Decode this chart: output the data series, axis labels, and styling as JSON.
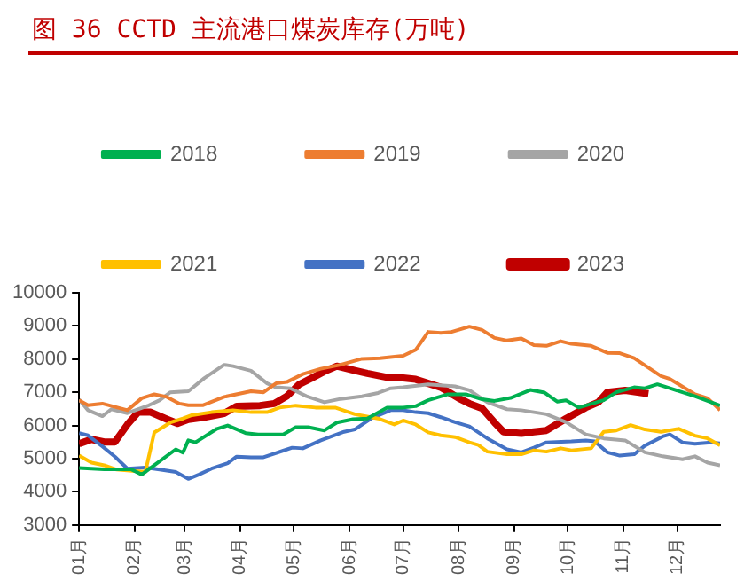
{
  "chart_data": {
    "type": "line",
    "title": "图 36 CCTD 主流港口煤炭库存(万吨)",
    "xlim": [
      "--01-01",
      "--12-25"
    ],
    "xticks": [
      {
        "value": "--01-01",
        "label": "01月"
      },
      {
        "value": "--02-01",
        "label": "02月"
      },
      {
        "value": "--03-01",
        "label": "03月"
      },
      {
        "value": "--04-01",
        "label": "04月"
      },
      {
        "value": "--05-01",
        "label": "05月"
      },
      {
        "value": "--06-01",
        "label": "06月"
      },
      {
        "value": "--07-01",
        "label": "07月"
      },
      {
        "value": "--08-01",
        "label": "08月"
      },
      {
        "value": "--09-01",
        "label": "09月"
      },
      {
        "value": "--10-01",
        "label": "10月"
      },
      {
        "value": "--11-01",
        "label": "11月"
      },
      {
        "value": "--12-01",
        "label": "12月"
      }
    ],
    "ylim": [
      3000,
      10000
    ],
    "yticks": [
      3000,
      4000,
      5000,
      6000,
      7000,
      8000,
      9000,
      10000
    ],
    "grid": false,
    "legend": "top",
    "marker": "none",
    "line_style": "solid",
    "series": [
      {
        "name": "2018",
        "color": "#00b050",
        "x": [
          "--01-01",
          "--01-15",
          "--01-30",
          "--02-05",
          "--02-12",
          "--02-24",
          "--02-28",
          "--03-03",
          "--03-07",
          "--03-19",
          "--03-25",
          "--04-04",
          "--04-11",
          "--04-25",
          "--05-02",
          "--05-09",
          "--05-18",
          "--05-25",
          "--06-03",
          "--06-11",
          "--06-22",
          "--07-01",
          "--07-08",
          "--07-15",
          "--07-26",
          "--08-05",
          "--08-14",
          "--08-21",
          "--08-30",
          "--09-10",
          "--09-18",
          "--09-25",
          "--09-30",
          "--10-07",
          "--10-21",
          "--10-28",
          "--11-07",
          "--11-13",
          "--11-20",
          "--11-27",
          "--12-11",
          "--12-25"
        ],
        "values": [
          4720,
          4680,
          4680,
          4520,
          4800,
          5280,
          5180,
          5550,
          5490,
          5900,
          6000,
          5770,
          5730,
          5730,
          5950,
          5950,
          5850,
          6090,
          6190,
          6210,
          6540,
          6540,
          6580,
          6760,
          6940,
          6940,
          6790,
          6740,
          6830,
          7070,
          6990,
          6720,
          6760,
          6540,
          6760,
          7000,
          7150,
          7120,
          7240,
          7120,
          6880,
          6600
        ]
      },
      {
        "name": "2019",
        "color": "#ed7d31",
        "x": [
          "--01-01",
          "--01-06",
          "--01-14",
          "--01-28",
          "--02-05",
          "--02-12",
          "--02-19",
          "--02-26",
          "--03-03",
          "--03-11",
          "--03-23",
          "--04-07",
          "--04-14",
          "--04-21",
          "--04-27",
          "--05-06",
          "--05-16",
          "--05-27",
          "--06-08",
          "--06-18",
          "--07-01",
          "--07-08",
          "--07-15",
          "--07-22",
          "--07-28",
          "--08-07",
          "--08-14",
          "--08-21",
          "--08-28",
          "--09-05",
          "--09-12",
          "--09-19",
          "--09-27",
          "--10-03",
          "--10-14",
          "--10-23",
          "--10-30",
          "--11-07",
          "--11-22",
          "--11-27",
          "--12-11",
          "--12-18",
          "--12-25"
        ],
        "values": [
          6760,
          6610,
          6660,
          6460,
          6820,
          6940,
          6860,
          6660,
          6610,
          6610,
          6860,
          7030,
          7000,
          7270,
          7310,
          7550,
          7710,
          7830,
          8010,
          8030,
          8100,
          8280,
          8820,
          8790,
          8820,
          8980,
          8880,
          8640,
          8560,
          8620,
          8420,
          8400,
          8540,
          8460,
          8400,
          8190,
          8180,
          8030,
          7490,
          7400,
          6940,
          6820,
          6460
        ]
      },
      {
        "name": "2020",
        "color": "#a5a5a5",
        "x": [
          "--01-01",
          "--01-06",
          "--01-14",
          "--01-19",
          "--01-28",
          "--02-09",
          "--02-15",
          "--02-21",
          "--03-03",
          "--03-12",
          "--03-23",
          "--03-28",
          "--04-07",
          "--04-16",
          "--04-21",
          "--04-29",
          "--05-08",
          "--05-18",
          "--05-27",
          "--06-08",
          "--06-17",
          "--06-24",
          "--07-01",
          "--07-15",
          "--07-30",
          "--08-07",
          "--08-17",
          "--08-28",
          "--09-05",
          "--09-19",
          "--09-30",
          "--10-11",
          "--10-21",
          "--11-02",
          "--11-13",
          "--11-23",
          "--12-04",
          "--12-11",
          "--12-18",
          "--12-25"
        ],
        "values": [
          6780,
          6460,
          6280,
          6490,
          6370,
          6610,
          6760,
          7000,
          7030,
          7430,
          7830,
          7790,
          7650,
          7270,
          7150,
          7120,
          6880,
          6700,
          6800,
          6880,
          6980,
          7120,
          7150,
          7240,
          7180,
          7060,
          6700,
          6490,
          6460,
          6340,
          6100,
          5730,
          5610,
          5550,
          5190,
          5070,
          4980,
          5070,
          4880,
          4800
        ]
      },
      {
        "name": "2021",
        "color": "#ffc000",
        "x": [
          "--01-01",
          "--01-08",
          "--01-15",
          "--01-22",
          "--02-07",
          "--02-12",
          "--02-21",
          "--02-28",
          "--03-05",
          "--03-16",
          "--03-28",
          "--04-07",
          "--04-16",
          "--04-23",
          "--05-02",
          "--05-13",
          "--05-24",
          "--06-04",
          "--06-17",
          "--06-26",
          "--07-01",
          "--07-08",
          "--07-15",
          "--07-22",
          "--07-30",
          "--08-07",
          "--08-12",
          "--08-17",
          "--08-28",
          "--09-05",
          "--09-12",
          "--09-19",
          "--09-27",
          "--10-03",
          "--10-14",
          "--10-21",
          "--10-28",
          "--11-05",
          "--11-13",
          "--11-22",
          "--12-02",
          "--12-11",
          "--12-18",
          "--12-25"
        ],
        "values": [
          5090,
          4880,
          4800,
          4670,
          4600,
          5790,
          6090,
          6210,
          6310,
          6400,
          6460,
          6400,
          6400,
          6540,
          6600,
          6540,
          6540,
          6340,
          6210,
          6030,
          6150,
          6030,
          5790,
          5700,
          5650,
          5490,
          5410,
          5210,
          5130,
          5130,
          5250,
          5210,
          5310,
          5250,
          5310,
          5810,
          5850,
          6010,
          5880,
          5810,
          5900,
          5690,
          5610,
          5400
        ]
      },
      {
        "name": "2022",
        "color": "#4472c4",
        "x": [
          "--01-01",
          "--01-06",
          "--01-14",
          "--01-21",
          "--01-28",
          "--02-07",
          "--02-15",
          "--02-24",
          "--03-03",
          "--03-09",
          "--03-16",
          "--03-25",
          "--03-30",
          "--04-07",
          "--04-14",
          "--04-25",
          "--04-30",
          "--05-06",
          "--05-16",
          "--05-29",
          "--06-04",
          "--06-13",
          "--06-24",
          "--07-01",
          "--07-08",
          "--07-15",
          "--07-22",
          "--07-30",
          "--08-07",
          "--08-17",
          "--08-28",
          "--09-05",
          "--09-12",
          "--09-19",
          "--10-03",
          "--10-11",
          "--10-16",
          "--10-23",
          "--10-30",
          "--11-07",
          "--11-13",
          "--11-23",
          "--11-27",
          "--12-04",
          "--12-11",
          "--12-20",
          "--12-25"
        ],
        "values": [
          5770,
          5700,
          5370,
          5060,
          4700,
          4730,
          4670,
          4600,
          4390,
          4520,
          4700,
          4860,
          5060,
          5040,
          5040,
          5240,
          5330,
          5310,
          5550,
          5810,
          5880,
          6210,
          6460,
          6460,
          6400,
          6370,
          6250,
          6100,
          5970,
          5610,
          5280,
          5190,
          5330,
          5490,
          5520,
          5550,
          5520,
          5190,
          5090,
          5130,
          5390,
          5670,
          5730,
          5490,
          5450,
          5490,
          5460
        ]
      },
      {
        "name": "2023",
        "color": "#c00000",
        "x": [
          "--01-01",
          "--01-08",
          "--01-15",
          "--01-21",
          "--01-28",
          "--02-03",
          "--02-10",
          "--02-19",
          "--02-25",
          "--03-03",
          "--03-12",
          "--03-23",
          "--03-30",
          "--04-12",
          "--04-20",
          "--04-27",
          "--05-04",
          "--05-11",
          "--05-18",
          "--05-25",
          "--06-03",
          "--06-11",
          "--06-24",
          "--07-01",
          "--07-08",
          "--07-15",
          "--07-22",
          "--08-01",
          "--08-07",
          "--08-14",
          "--08-21",
          "--08-26",
          "--09-05",
          "--09-12",
          "--09-19",
          "--09-30",
          "--10-11",
          "--10-18",
          "--10-23",
          "--11-02",
          "--11-15"
        ],
        "values": [
          5450,
          5580,
          5500,
          5500,
          6030,
          6400,
          6400,
          6190,
          6060,
          6180,
          6250,
          6360,
          6580,
          6600,
          6660,
          6880,
          7240,
          7430,
          7630,
          7790,
          7670,
          7570,
          7430,
          7430,
          7390,
          7270,
          7150,
          6820,
          6660,
          6520,
          6090,
          5810,
          5760,
          5810,
          5850,
          6210,
          6540,
          6700,
          7000,
          7060,
          6960
        ]
      }
    ]
  }
}
